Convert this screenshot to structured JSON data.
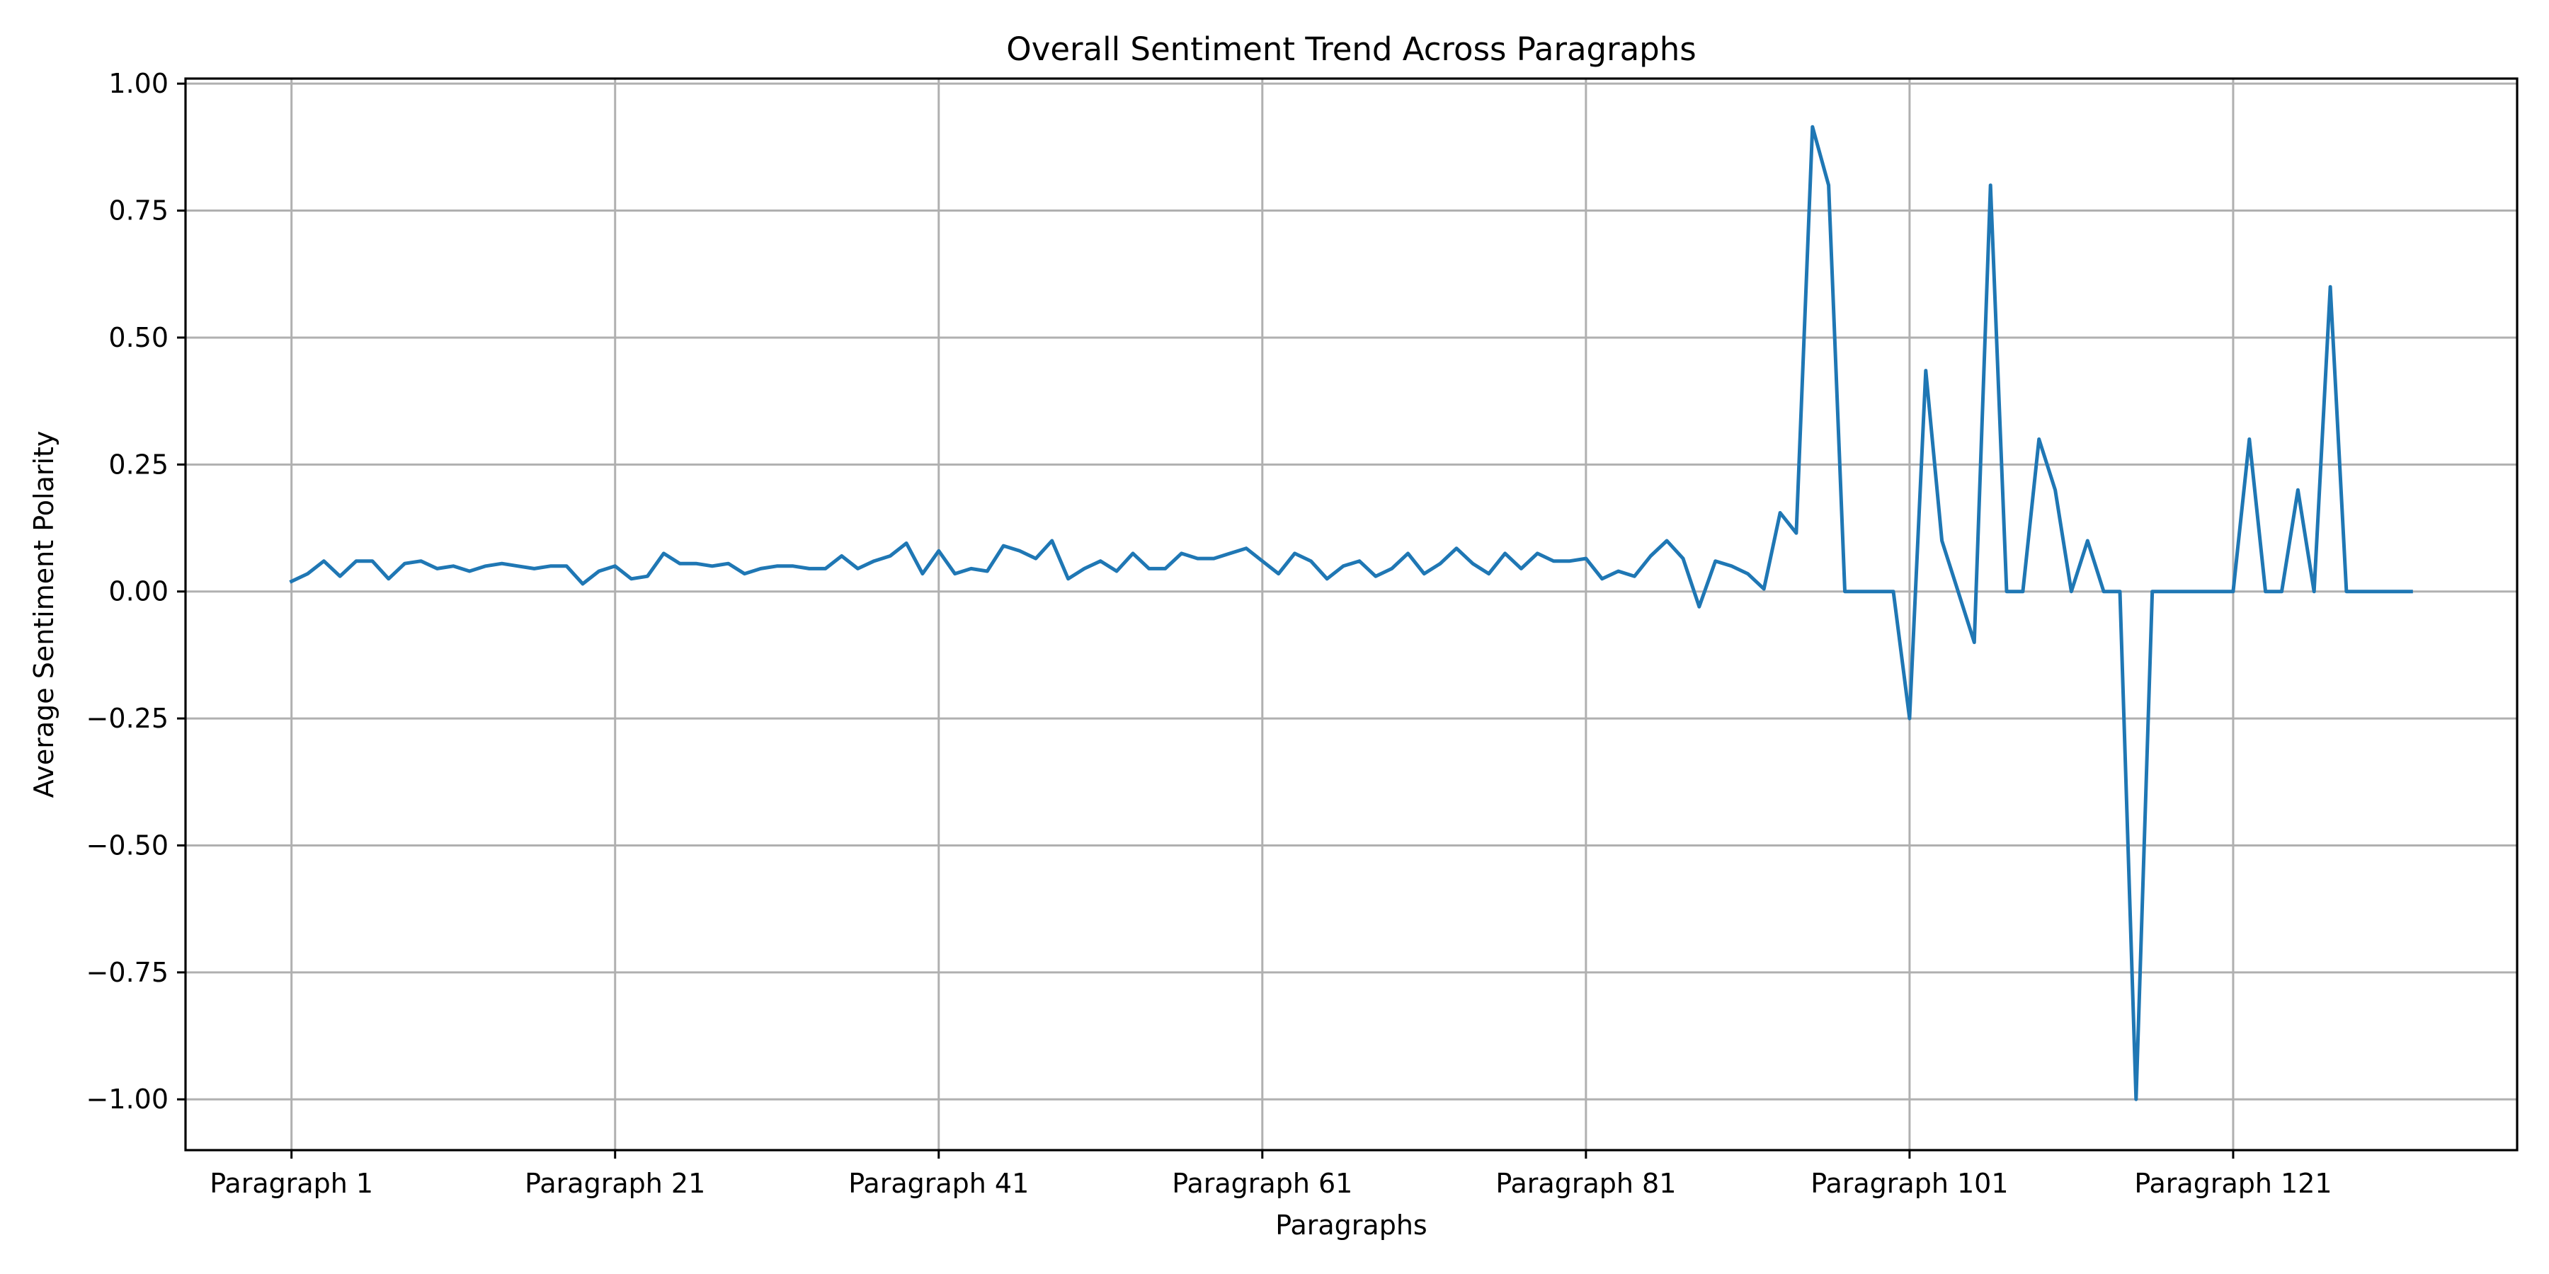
{
  "chart_data": {
    "type": "line",
    "title": "Overall Sentiment Trend Across Paragraphs",
    "xlabel": "Paragraphs",
    "ylabel": "Average Sentiment Polarity",
    "ylim": [
      -1.1,
      1.01
    ],
    "yticks": [
      1.0,
      0.75,
      0.5,
      0.25,
      0.0,
      -0.25,
      -0.5,
      -0.75,
      -1.0
    ],
    "ytick_labels": [
      "1.00",
      "0.75",
      "0.50",
      "0.25",
      "0.00",
      "−0.25",
      "−0.50",
      "−0.75",
      "−1.00"
    ],
    "xtick_positions": [
      1,
      21,
      41,
      61,
      81,
      101,
      121
    ],
    "xtick_labels": [
      "Paragraph 1",
      "Paragraph 21",
      "Paragraph 41",
      "Paragraph 61",
      "Paragraph 81",
      "Paragraph 101",
      "Paragraph 121"
    ],
    "grid": true,
    "line_color": "#1f77b4",
    "series": [
      {
        "values": [
          0.02,
          0.035,
          0.06,
          0.03,
          0.06,
          0.06,
          0.025,
          0.055,
          0.06,
          0.045,
          0.05,
          0.04,
          0.05,
          0.055,
          0.05,
          0.045,
          0.05,
          0.05,
          0.015,
          0.04,
          0.05,
          0.025,
          0.03,
          0.075,
          0.055,
          0.055,
          0.05,
          0.055,
          0.035,
          0.045,
          0.05,
          0.05,
          0.045,
          0.045,
          0.07,
          0.045,
          0.06,
          0.07,
          0.095,
          0.035,
          0.08,
          0.035,
          0.045,
          0.04,
          0.09,
          0.08,
          0.065,
          0.1,
          0.025,
          0.045,
          0.06,
          0.04,
          0.075,
          0.045,
          0.045,
          0.075,
          0.065,
          0.065,
          0.075,
          0.085,
          0.06,
          0.035,
          0.075,
          0.06,
          0.025,
          0.05,
          0.06,
          0.03,
          0.045,
          0.075,
          0.035,
          0.055,
          0.085,
          0.055,
          0.035,
          0.075,
          0.045,
          0.075,
          0.06,
          0.06,
          0.065,
          0.025,
          0.04,
          0.03,
          0.07,
          0.1,
          0.065,
          -0.03,
          0.06,
          0.05,
          0.035,
          0.005,
          0.155,
          0.115,
          0.915,
          0.8,
          0.0,
          0.0,
          0.0,
          0.0,
          -0.25,
          0.435,
          0.1,
          0.0,
          -0.1,
          0.8,
          0.0,
          0.0,
          0.3,
          0.2,
          0.0,
          0.1,
          0.0,
          0.0,
          -1.0,
          0.0,
          0.0,
          0.0,
          0.0,
          0.0,
          0.0,
          0.3,
          0.0,
          0.0,
          0.2,
          0.0,
          0.6,
          0.0,
          0.0,
          0.0,
          0.0,
          0.0
        ]
      }
    ]
  }
}
